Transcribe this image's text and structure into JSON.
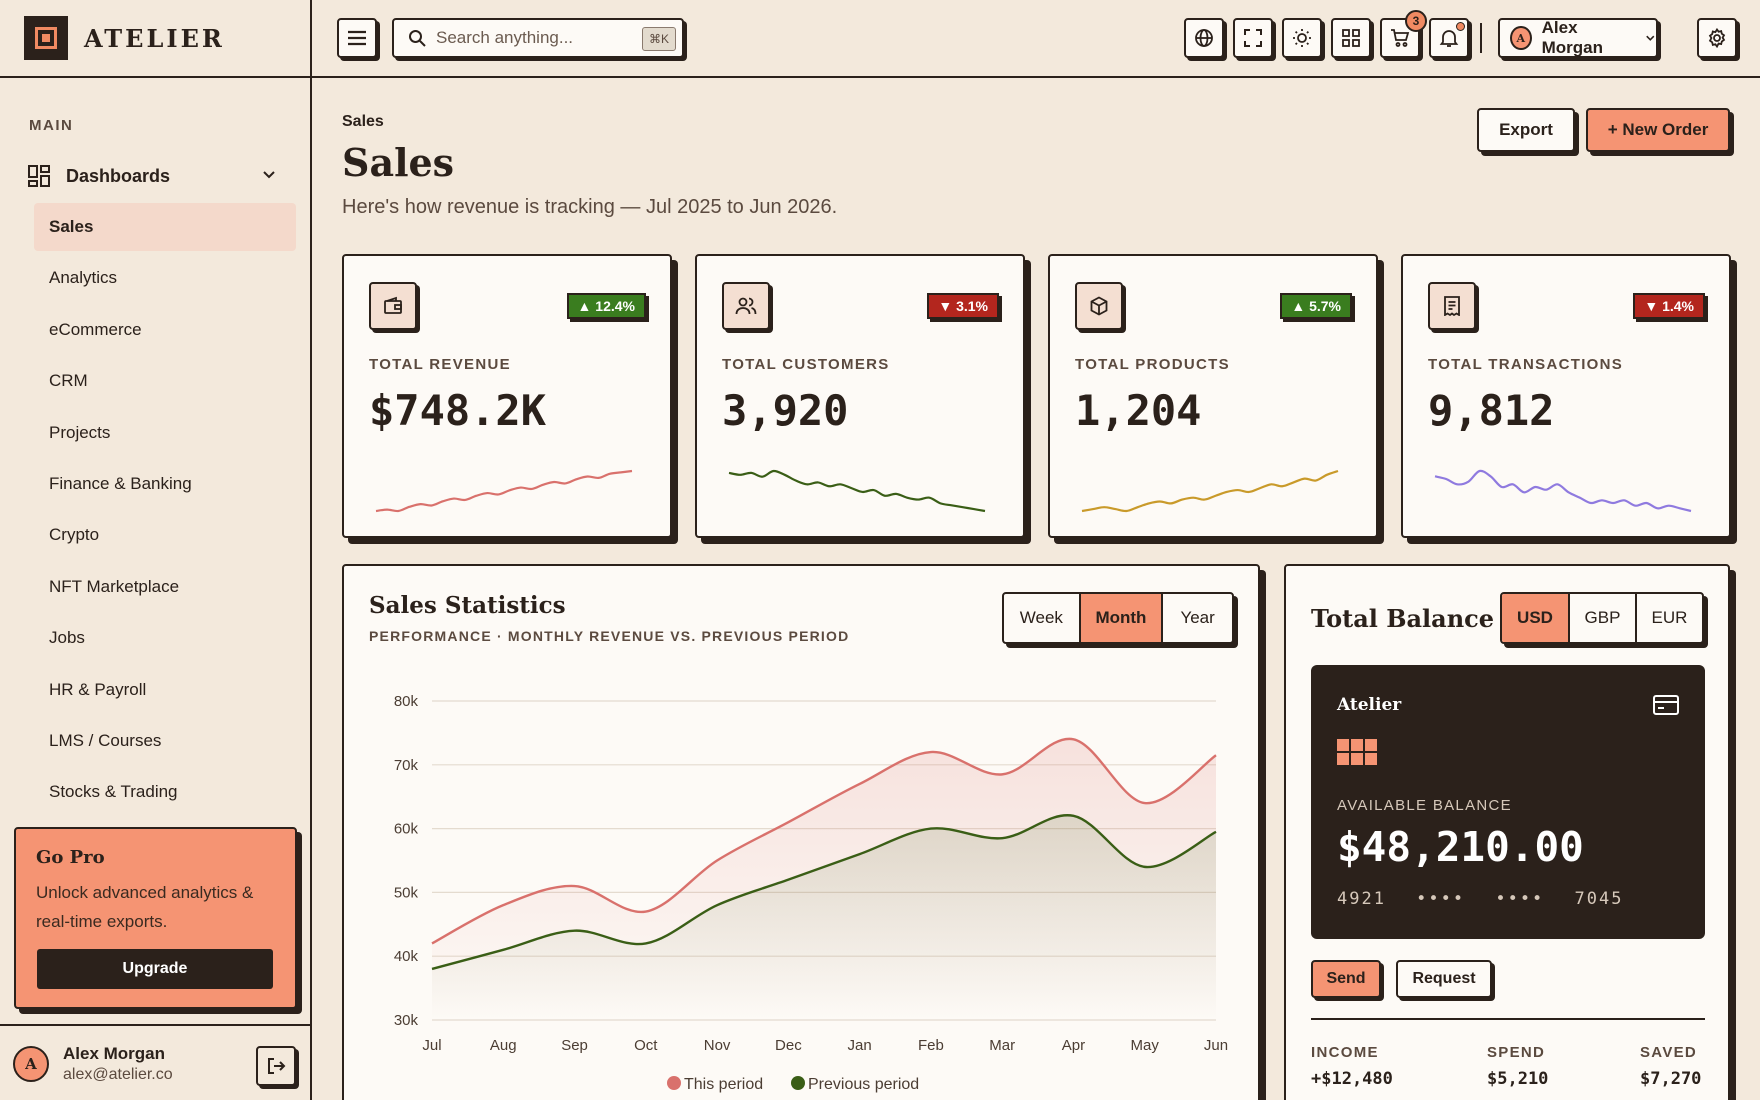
{
  "brand": {
    "name": "ATELIER"
  },
  "sidebar": {
    "section": "MAIN",
    "dashboards_label": "Dashboards",
    "items": [
      {
        "label": "Sales"
      },
      {
        "label": "Analytics"
      },
      {
        "label": "eCommerce"
      },
      {
        "label": "CRM"
      },
      {
        "label": "Projects"
      },
      {
        "label": "Finance & Banking"
      },
      {
        "label": "Crypto"
      },
      {
        "label": "NFT Marketplace"
      },
      {
        "label": "Jobs"
      },
      {
        "label": "HR & Payroll"
      },
      {
        "label": "LMS / Courses"
      },
      {
        "label": "Stocks & Trading"
      }
    ],
    "gopro": {
      "title": "Go Pro",
      "text": "Unlock advanced analytics & real-time exports.",
      "button": "Upgrade"
    },
    "user": {
      "initial": "A",
      "name": "Alex Morgan",
      "email": "alex@atelier.co"
    }
  },
  "topbar": {
    "search_placeholder": "Search anything...",
    "shortcut": "⌘K",
    "cart_count": "3",
    "user_initial": "A",
    "user_name": "Alex Morgan"
  },
  "page": {
    "breadcrumb": "Sales",
    "title": "Sales",
    "subtitle": "Here's how revenue is tracking — Jul 2025 to Jun 2026.",
    "export_label": "Export",
    "new_order_label": "+ New Order"
  },
  "kpis": [
    {
      "label": "TOTAL REVENUE",
      "value": "$748.2K",
      "change": "▲ 12.4%",
      "trend": "up",
      "color": "#d9716c",
      "spark": [
        3,
        4,
        3,
        6,
        8,
        7,
        10,
        12,
        11,
        14,
        16,
        15,
        18,
        20,
        19,
        22,
        24,
        23,
        26,
        28,
        27,
        30,
        31,
        32
      ]
    },
    {
      "label": "TOTAL CUSTOMERS",
      "value": "3,920",
      "change": "▼ 3.1%",
      "trend": "down",
      "color": "#3a5e16",
      "spark": [
        26,
        25,
        26,
        24,
        27,
        25,
        22,
        20,
        21,
        19,
        20,
        18,
        16,
        17,
        14,
        15,
        13,
        12,
        13,
        10,
        9,
        8,
        7,
        6
      ]
    },
    {
      "label": "TOTAL PRODUCTS",
      "value": "1,204",
      "change": "▲ 5.7%",
      "trend": "up",
      "color": "#c99a2a",
      "spark": [
        4,
        5,
        6,
        5,
        4,
        6,
        8,
        9,
        8,
        10,
        11,
        10,
        12,
        14,
        15,
        14,
        16,
        18,
        17,
        19,
        21,
        20,
        23,
        25
      ]
    },
    {
      "label": "TOTAL TRANSACTIONS",
      "value": "9,812",
      "change": "▼ 1.4%",
      "trend": "down",
      "color": "#8f7adf",
      "spark": [
        22,
        21,
        19,
        20,
        24,
        22,
        18,
        19,
        16,
        18,
        17,
        19,
        16,
        14,
        12,
        13,
        12,
        13,
        11,
        12,
        10,
        11,
        10,
        9
      ]
    }
  ],
  "colors": {
    "up": "#3a7d1f",
    "down": "#b3261e",
    "accent": "#f59473",
    "dark": "#2b211b"
  },
  "stats": {
    "title": "Sales Statistics",
    "subtitle": "PERFORMANCE · MONTHLY REVENUE VS. PREVIOUS PERIOD",
    "periods": [
      "Week",
      "Month",
      "Year"
    ],
    "active_period": "Month"
  },
  "chart_data": {
    "type": "area",
    "categories": [
      "Jul",
      "Aug",
      "Sep",
      "Oct",
      "Nov",
      "Dec",
      "Jan",
      "Feb",
      "Mar",
      "Apr",
      "May",
      "Jun"
    ],
    "ylim": [
      30000,
      80000
    ],
    "yticks": [
      "30k",
      "40k",
      "50k",
      "60k",
      "70k",
      "80k"
    ],
    "grid": true,
    "legend_position": "bottom",
    "series": [
      {
        "name": "This period",
        "color": "#d9716c",
        "values": [
          42000,
          48000,
          51000,
          47000,
          55000,
          61000,
          67000,
          72000,
          68500,
          74000,
          64000,
          71500
        ]
      },
      {
        "name": "Previous period",
        "color": "#3a5e16",
        "values": [
          38000,
          41000,
          44000,
          42000,
          48000,
          52000,
          56000,
          60000,
          58500,
          62000,
          54000,
          59500
        ]
      }
    ]
  },
  "balance": {
    "title": "Total Balance",
    "currencies": [
      "USD",
      "GBP",
      "EUR"
    ],
    "active_currency": "USD",
    "card_name": "Atelier",
    "available_label": "AVAILABLE BALANCE",
    "amount": "$48,210.00",
    "card_number": "4921 •••• •••• 7045",
    "send_label": "Send",
    "request_label": "Request",
    "income_label": "INCOME",
    "income_value": "+$12,480",
    "spend_label": "SPEND",
    "spend_value": "$5,210",
    "saved_label": "SAVED",
    "saved_value": "$7,270"
  }
}
